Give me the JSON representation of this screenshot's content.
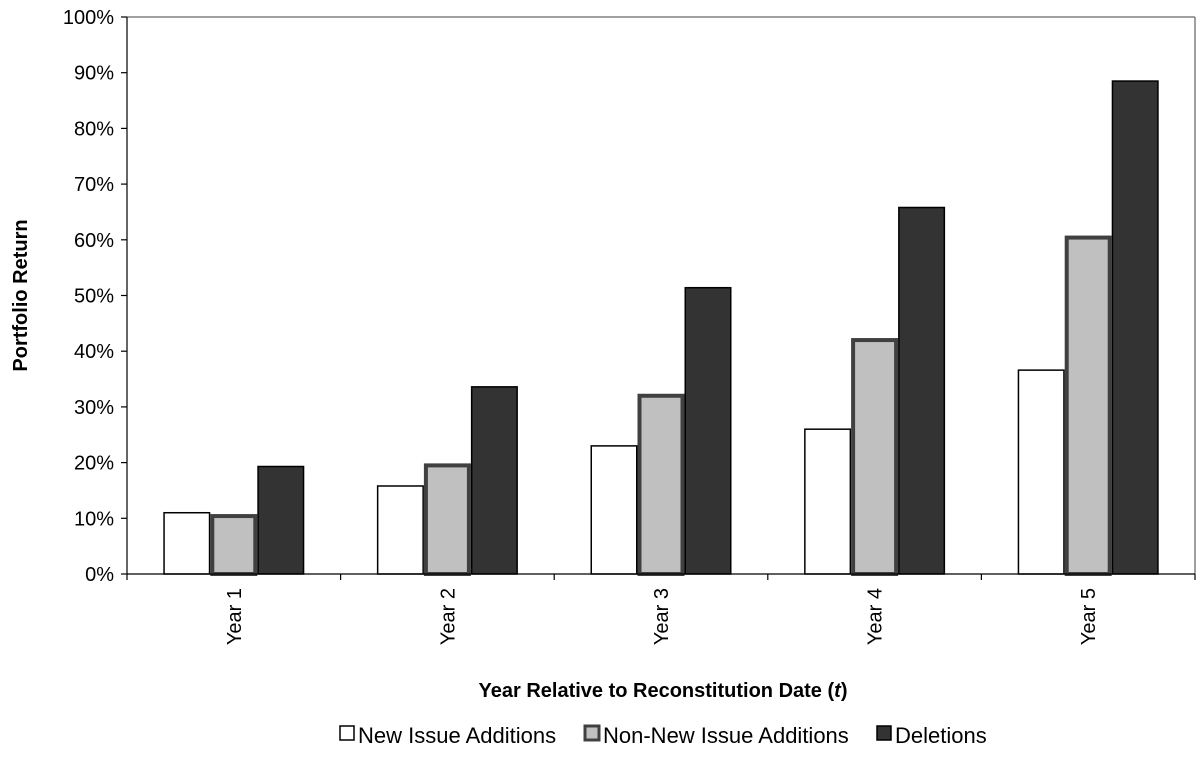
{
  "chart_data": {
    "type": "bar",
    "title": "",
    "xlabel": "Year Relative to Reconstitution Date (",
    "xlabel_var": "t",
    "xlabel_close": ")",
    "ylabel": "Portfolio Return",
    "ylim": [
      0,
      100
    ],
    "y_tick_values": [
      0,
      10,
      20,
      30,
      40,
      50,
      60,
      70,
      80,
      90,
      100
    ],
    "y_tick_labels": [
      "0%",
      "10%",
      "20%",
      "30%",
      "40%",
      "50%",
      "60%",
      "70%",
      "80%",
      "90%",
      "100%"
    ],
    "categories": [
      "Year 1",
      "Year 2",
      "Year 3",
      "Year 4",
      "Year 5"
    ],
    "series": [
      {
        "name": "New Issue Additions",
        "values": [
          11,
          15.8,
          23,
          26,
          36.6
        ],
        "fill": "#ffffff",
        "stroke": "#000000"
      },
      {
        "name": "Non-New Issue Additions",
        "values": [
          10.4,
          19.5,
          32,
          42,
          60.4
        ],
        "fill": "#c0c0c0",
        "stroke": "#404040"
      },
      {
        "name": "Deletions",
        "values": [
          19.3,
          33.6,
          51.4,
          65.8,
          88.5
        ],
        "fill": "#333333",
        "stroke": "#000000"
      }
    ],
    "grid": false,
    "legend_position": "bottom"
  }
}
